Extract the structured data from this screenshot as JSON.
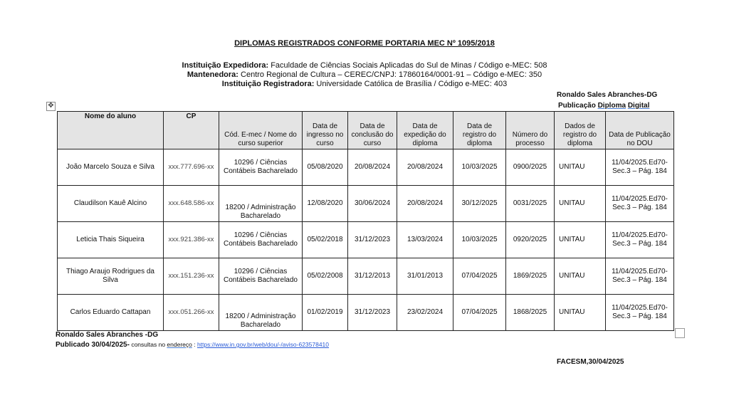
{
  "title": "DIPLOMAS REGISTRADOS CONFORME PORTARIA MEC Nº 1095/2018",
  "info": [
    {
      "label": "Instituição Expedidora:",
      "value": " Faculdade de Ciências Sociais Aplicadas do Sul de Minas / Código e-MEC: 508"
    },
    {
      "label": "Mantenedora:",
      "value": " Centro Regional de Cultura – CEREC/CNPJ: 17860164/0001-91 – Código e-MEC: 350"
    },
    {
      "label": "Instituição Registradora:",
      "value": " Universidade Católica de Brasília / Código e-MEC: 403"
    }
  ],
  "signer_top": "Ronaldo Sales Abranches-DG",
  "pub_top": {
    "a": "Publicação ",
    "b": "Diploma",
    "c": " ",
    "d": "Digital"
  },
  "table": {
    "headers": [
      "Nome do aluno",
      "CP",
      "Cód. E-mec / Nome do curso superior",
      "Data de ingresso no curso",
      "Data de conclusão do curso",
      "Data de expedição do diploma",
      "Data de registro do diploma",
      "Número do processo",
      "Dados de registro do diploma",
      "Data de Publicação no DOU"
    ],
    "rows": [
      [
        "João Marcelo Souza e Silva",
        "xxx.777.696-xx",
        "10296 / Ciências Contábeis Bacharelado",
        "05/08/2020",
        "20/08/2024",
        "20/08/2024",
        "10/03/2025",
        "0900/2025",
        "UNITAU",
        "11/04/2025.Ed70-Sec.3 – Pág. 184"
      ],
      [
        "Claudilson Kauê Alcino",
        "xxx.648.586-xx",
        "18200 / Administração Bacharelado",
        "12/08/2020",
        "30/06/2024",
        "20/08/2024",
        "30/12/2025",
        "0031/2025",
        "UNITAU",
        "11/04/2025.Ed70-Sec.3 – Pág. 184"
      ],
      [
        "Leticia Thais Siqueira",
        "xxx.921.386-xx",
        "10296 / Ciências Contábeis Bacharelado",
        "05/02/2018",
        "31/12/2023",
        "13/03/2024",
        "10/03/2025",
        "0920/2025",
        "UNITAU",
        "11/04/2025.Ed70-Sec.3 – Pág. 184"
      ],
      [
        "Thiago Araujo Rodrigues da Silva",
        "xxx.151.236-xx",
        "10296 / Ciências Contábeis Bacharelado",
        "05/02/2008",
        "31/12/2013",
        "31/01/2013",
        "07/04/2025",
        "1869/2025",
        "UNITAU",
        "11/04/2025.Ed70-Sec.3 – Pág. 184"
      ],
      [
        "Carlos Eduardo Cattapan",
        "xxx.051.266-xx",
        "18200 / Administração Bacharelado",
        "01/02/2019",
        "31/12/2023",
        "23/02/2024",
        "07/04/2025",
        "1868/2025",
        "UNITAU",
        "11/04/2025.Ed70-Sec.3 – Pág. 184"
      ]
    ]
  },
  "footer": {
    "signer": "Ronaldo Sales Abranches -DG",
    "published": "Publicado 30/04/2025-",
    "consult": " consultas no ",
    "endereco": "endereço",
    "colon": " : ",
    "link": "https://www.in.gov.br/web/dou/-/aviso-623578410",
    "place_date": "FACESM,30/04/2025"
  }
}
